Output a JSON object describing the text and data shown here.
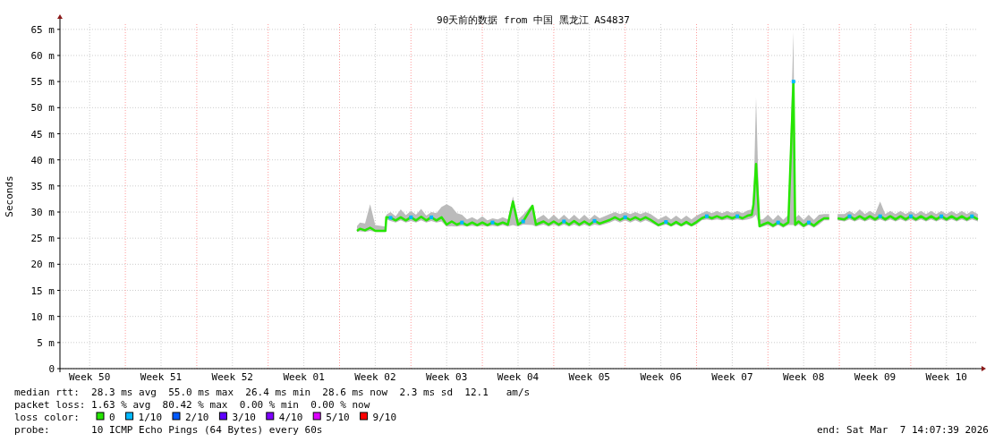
{
  "chart_data": {
    "type": "line",
    "title": "90天前的数据 from 中国 黑龙江 AS4837",
    "ylabel": "Seconds",
    "legend_title": "loss color:",
    "legend": "bottom",
    "grid": true,
    "xlim": [
      "2025-12-07T14:07",
      "2026-03-07T14:07"
    ],
    "xticks": [
      {
        "value": "2025-12-10T12:00",
        "label": "Week 50"
      },
      {
        "value": "2025-12-17T12:00",
        "label": "Week 51"
      },
      {
        "value": "2025-12-24T12:00",
        "label": "Week 52"
      },
      {
        "value": "2025-12-31T12:00",
        "label": "Week 01"
      },
      {
        "value": "2026-01-07T12:00",
        "label": "Week 02"
      },
      {
        "value": "2026-01-14T12:00",
        "label": "Week 03"
      },
      {
        "value": "2026-01-21T12:00",
        "label": "Week 04"
      },
      {
        "value": "2026-01-28T12:00",
        "label": "Week 05"
      },
      {
        "value": "2026-02-04T12:00",
        "label": "Week 06"
      },
      {
        "value": "2026-02-11T12:00",
        "label": "Week 07"
      },
      {
        "value": "2026-02-18T12:00",
        "label": "Week 08"
      },
      {
        "value": "2026-02-25T12:00",
        "label": "Week 09"
      },
      {
        "value": "2026-03-04T12:00",
        "label": "Week 10"
      }
    ],
    "ylim": [
      0,
      66
    ],
    "yticks": [
      0,
      {
        "value": 5,
        "label": "5 m"
      },
      {
        "value": 10,
        "label": "10 m"
      },
      {
        "value": 15,
        "label": "15 m"
      },
      {
        "value": 20,
        "label": "20 m"
      },
      {
        "value": 25,
        "label": "25 m"
      },
      {
        "value": 30,
        "label": "30 m"
      },
      {
        "value": 35,
        "label": "35 m"
      },
      {
        "value": 40,
        "label": "40 m"
      },
      {
        "value": 45,
        "label": "45 m"
      },
      {
        "value": 50,
        "label": "50 m"
      },
      {
        "value": 55,
        "label": "55 m"
      },
      {
        "value": 60,
        "label": "60 m"
      },
      {
        "value": 65,
        "label": "65 m"
      }
    ],
    "ref_lines": [
      {
        "axis": "x",
        "value": "2025-12-14T00:00",
        "color": "#ff9999",
        "line_style": "dotted"
      },
      {
        "axis": "x",
        "value": "2025-12-21T00:00",
        "color": "#ff9999",
        "line_style": "dotted"
      },
      {
        "axis": "x",
        "value": "2025-12-28T00:00",
        "color": "#ff9999",
        "line_style": "dotted"
      },
      {
        "axis": "x",
        "value": "2026-01-04T00:00",
        "color": "#ff9999",
        "line_style": "dotted"
      },
      {
        "axis": "x",
        "value": "2026-01-11T00:00",
        "color": "#ff9999",
        "line_style": "dotted"
      },
      {
        "axis": "x",
        "value": "2026-01-18T00:00",
        "color": "#ff9999",
        "line_style": "dotted"
      },
      {
        "axis": "x",
        "value": "2026-01-25T00:00",
        "color": "#ff9999",
        "line_style": "dotted"
      },
      {
        "axis": "x",
        "value": "2026-02-01T00:00",
        "color": "#ff9999",
        "line_style": "dotted"
      },
      {
        "axis": "x",
        "value": "2026-02-08T00:00",
        "color": "#ff9999",
        "line_style": "dotted"
      },
      {
        "axis": "x",
        "value": "2026-02-15T00:00",
        "color": "#ff9999",
        "line_style": "dotted"
      },
      {
        "axis": "x",
        "value": "2026-02-22T00:00",
        "color": "#ff9999",
        "line_style": "dotted"
      },
      {
        "axis": "x",
        "value": "2026-03-01T00:00",
        "color": "#ff9999",
        "line_style": "dotted"
      }
    ],
    "series": [
      {
        "name": "0",
        "color": "#26e600",
        "type": "line",
        "x": [
          "2026-01-05T17:00",
          "2026-01-06T00:00",
          "2026-01-06T12:00",
          "2026-01-07T00:00",
          "2026-01-07T12:00",
          "2026-01-08T12:00",
          "2026-01-08T14:00",
          "2026-01-09T00:00",
          "2026-01-09T12:00",
          "2026-01-10T00:00",
          "2026-01-10T12:00",
          "2026-01-11T00:00",
          "2026-01-11T12:00",
          "2026-01-12T00:00",
          "2026-01-12T12:00",
          "2026-01-13T00:00",
          "2026-01-13T12:00",
          "2026-01-14T00:00",
          "2026-01-14T12:00",
          "2026-01-15T00:00",
          "2026-01-15T12:00",
          "2026-01-16T00:00",
          "2026-01-16T12:00",
          "2026-01-17T00:00",
          "2026-01-17T12:00",
          "2026-01-18T00:00",
          "2026-01-18T12:00",
          "2026-01-19T00:00",
          "2026-01-19T12:00",
          "2026-01-20T00:00",
          "2026-01-20T12:00",
          "2026-01-21T00:00",
          "2026-01-21T12:00",
          "2026-01-22T00:00",
          "2026-01-22T22:00",
          "2026-01-23T06:00",
          "2026-01-24T00:00",
          "2026-01-24T12:00",
          "2026-01-25T00:00",
          "2026-01-25T12:00",
          "2026-01-26T00:00",
          "2026-01-26T12:00",
          "2026-01-27T00:00",
          "2026-01-27T12:00",
          "2026-01-28T00:00",
          "2026-01-28T12:00",
          "2026-01-29T00:00",
          "2026-01-29T12:00",
          "2026-01-30T12:00",
          "2026-01-31T00:00",
          "2026-01-31T12:00",
          "2026-02-01T00:00",
          "2026-02-01T12:00",
          "2026-02-02T00:00",
          "2026-02-02T12:00",
          "2026-02-03T00:00",
          "2026-02-03T12:00",
          "2026-02-04T06:00",
          "2026-02-05T00:00",
          "2026-02-05T12:00",
          "2026-02-06T00:00",
          "2026-02-06T12:00",
          "2026-02-07T00:00",
          "2026-02-07T12:00",
          "2026-02-08T00:00",
          "2026-02-08T12:00",
          "2026-02-09T00:00",
          "2026-02-09T12:00",
          "2026-02-10T00:00",
          "2026-02-10T12:00",
          "2026-02-11T00:00",
          "2026-02-11T12:00",
          "2026-02-12T00:00",
          "2026-02-12T12:00",
          "2026-02-13T00:00",
          "2026-02-13T10:00",
          "2026-02-13T14:00",
          "2026-02-13T20:00",
          "2026-02-14T04:00",
          "2026-02-14T12:00",
          "2026-02-15T00:00",
          "2026-02-15T12:00",
          "2026-02-16T00:00",
          "2026-02-16T12:00",
          "2026-02-17T00:00",
          "2026-02-17T12:00",
          "2026-02-17T16:00",
          "2026-02-18T00:00",
          "2026-02-18T12:00",
          "2026-02-19T00:00",
          "2026-02-19T12:00",
          "2026-02-20T00:00",
          "2026-02-20T12:00",
          "2026-02-21T00:00",
          "2026-02-21T08:00",
          "2026-02-21T20:00",
          "2026-02-22T12:00",
          "2026-02-23T00:00",
          "2026-02-23T12:00",
          "2026-02-24T00:00",
          "2026-02-24T12:00",
          "2026-02-25T00:00",
          "2026-02-25T12:00",
          "2026-02-26T00:00",
          "2026-02-26T12:00",
          "2026-02-27T00:00",
          "2026-02-27T12:00",
          "2026-02-28T00:00",
          "2026-02-28T12:00",
          "2026-03-01T00:00",
          "2026-03-01T12:00",
          "2026-03-02T00:00",
          "2026-03-02T12:00",
          "2026-03-03T00:00",
          "2026-03-03T12:00",
          "2026-03-04T00:00",
          "2026-03-04T12:00",
          "2026-03-05T00:00",
          "2026-03-05T12:00",
          "2026-03-06T00:00",
          "2026-03-06T12:00",
          "2026-03-07T00:00",
          "2026-03-07T14:00"
        ],
        "values": [
          26.4,
          26.8,
          26.5,
          27,
          26.4,
          26.4,
          29,
          28.9,
          28.4,
          29,
          28.4,
          29,
          28.4,
          29.1,
          28.4,
          29,
          28.4,
          29,
          27.6,
          28.2,
          27.6,
          28,
          27.5,
          28,
          27.5,
          28,
          27.5,
          28,
          27.6,
          28,
          27.6,
          32,
          27.6,
          28.2,
          31.2,
          27.6,
          28.2,
          27.6,
          28.2,
          27.6,
          28.2,
          27.6,
          28.3,
          27.6,
          28.2,
          27.6,
          28.3,
          27.8,
          28.5,
          29,
          28.5,
          29,
          28.5,
          29,
          28.5,
          29,
          28.5,
          27.5,
          28.1,
          27.5,
          28.1,
          27.5,
          28.1,
          27.5,
          28.1,
          28.8,
          29.2,
          28.8,
          29.2,
          28.8,
          29.2,
          28.8,
          29.2,
          28.8,
          29.3,
          29.5,
          31.5,
          39.2,
          27.3,
          27.6,
          28,
          27.4,
          28,
          27.4,
          28,
          55,
          27.6,
          28.2,
          27.4,
          28,
          27.4,
          28.2,
          28.8,
          28.8,
          null,
          28.8,
          28.6,
          29.2,
          28.6,
          29.2,
          28.6,
          29.2,
          28.6,
          29.2,
          28.6,
          29.2,
          28.6,
          29.2,
          28.6,
          29.2,
          28.6,
          29.2,
          28.6,
          29.2,
          28.6,
          29.2,
          28.6,
          29.2,
          28.6,
          29.2,
          28.6,
          29.2,
          28.6
        ],
        "lower": [
          26.2,
          26.3,
          26.2,
          26.4,
          26.2,
          26.2,
          28.6,
          28.3,
          28,
          28.4,
          28,
          28.3,
          28,
          28.4,
          28,
          28.3,
          28,
          28.2,
          27.2,
          27.3,
          27.2,
          27.4,
          27.2,
          27.4,
          27.2,
          27.4,
          27.2,
          27.4,
          27.2,
          27.5,
          27.2,
          27.5,
          27.2,
          27.6,
          27.5,
          27.2,
          27.6,
          27.2,
          27.6,
          27.2,
          27.6,
          27.2,
          27.6,
          27.2,
          27.6,
          27.2,
          27.6,
          27.4,
          28,
          28.4,
          28,
          28.4,
          28,
          28.4,
          28,
          28.4,
          28,
          27.2,
          27.6,
          27.2,
          27.6,
          27.2,
          27.6,
          27.2,
          27.6,
          28.4,
          28.6,
          28.4,
          28.6,
          28.4,
          28.6,
          28.4,
          28.6,
          28.4,
          28.6,
          28.8,
          29,
          29.5,
          27,
          27.2,
          27.5,
          27,
          27.5,
          27,
          27.5,
          27.5,
          27.2,
          27.6,
          27,
          27.5,
          27,
          27.6,
          28.4,
          28.4,
          null,
          28.4,
          28.2,
          28.6,
          28.2,
          28.6,
          28.2,
          28.6,
          28.2,
          28.6,
          28.2,
          28.6,
          28.2,
          28.6,
          28.2,
          28.6,
          28.2,
          28.6,
          28.2,
          28.6,
          28.2,
          28.6,
          28.2,
          28.6,
          28.2,
          28.6,
          28.2,
          28.6,
          28.2
        ],
        "upper": [
          27.3,
          28,
          27.8,
          31.5,
          27.5,
          27.2,
          29.5,
          30,
          29.2,
          30.5,
          29.4,
          30.2,
          29.5,
          30.6,
          29.3,
          30,
          29.8,
          31,
          31.5,
          31,
          29.8,
          29.5,
          28.6,
          29,
          28.5,
          29.2,
          28.4,
          28.8,
          28.6,
          29,
          28.6,
          33,
          28.6,
          29.5,
          31.5,
          28.6,
          29.5,
          28.6,
          29.5,
          28.6,
          29.5,
          28.6,
          29.5,
          28.6,
          29.5,
          28.6,
          29.5,
          28.8,
          29.6,
          30,
          29.6,
          30,
          29.6,
          30,
          29.6,
          30,
          29.6,
          28.6,
          29.3,
          28.6,
          29.3,
          28.6,
          29.3,
          28.6,
          29.3,
          29.8,
          30.2,
          29.8,
          30.2,
          29.8,
          30.2,
          29.8,
          30.2,
          29.8,
          30.3,
          30.5,
          32,
          52,
          28.6,
          28.6,
          29.5,
          28.5,
          29.5,
          28.5,
          29.5,
          64.5,
          28.8,
          29.5,
          28.5,
          29.5,
          28.5,
          29.5,
          29.6,
          29.6,
          null,
          29.6,
          29.6,
          30.2,
          29.6,
          30.5,
          29.6,
          30.2,
          29.6,
          32,
          29.6,
          30.2,
          29.6,
          30.2,
          29.6,
          30.2,
          29.6,
          30.2,
          29.6,
          30.2,
          29.6,
          30.2,
          29.6,
          30.2,
          29.6,
          30.2,
          29.6,
          30.2,
          29.6
        ]
      },
      {
        "name": "1/10",
        "color": "#00b8ff",
        "type": "scatter",
        "marker": "square",
        "x": [
          "2026-01-09T00:00",
          "2026-01-11T00:00",
          "2026-01-13T00:00",
          "2026-01-16T00:00",
          "2026-01-19T00:00",
          "2026-01-22T00:00",
          "2026-01-26T00:00",
          "2026-01-29T00:00",
          "2026-02-01T00:00",
          "2026-02-05T00:00",
          "2026-02-09T00:00",
          "2026-02-12T00:00",
          "2026-02-16T00:00",
          "2026-02-17T12:00",
          "2026-02-19T00:00",
          "2026-02-23T00:00",
          "2026-02-26T00:00",
          "2026-03-01T00:00",
          "2026-03-04T00:00",
          "2026-03-07T00:00"
        ],
        "values": [
          28.9,
          29,
          29,
          28,
          28,
          28.2,
          28.2,
          28.3,
          29,
          28.1,
          29.2,
          29.2,
          28,
          55,
          28,
          29.2,
          29.2,
          29.2,
          29.2,
          29.2
        ]
      },
      {
        "name": "2/10",
        "color": "#0059ff",
        "type": "scatter"
      },
      {
        "name": "3/10",
        "color": "#5e00ff",
        "type": "scatter"
      },
      {
        "name": "4/10",
        "color": "#7e00ff",
        "type": "scatter"
      },
      {
        "name": "5/10",
        "color": "#dd00ff",
        "type": "scatter"
      },
      {
        "name": "9/10",
        "color": "#ff0000",
        "type": "scatter"
      }
    ],
    "annotations": [
      "median rtt:  28.3 ms avg  55.0 ms max  26.4 ms min  28.6 ms now  2.3 ms sd  12.1   am/s",
      "packet loss: 1.63 % avg  80.42 % max  0.00 % min  0.00 % now",
      "probe:       10 ICMP Echo Pings (64 Bytes) every 60s",
      "end: Sat Mar  7 14:07:39 2026"
    ]
  }
}
